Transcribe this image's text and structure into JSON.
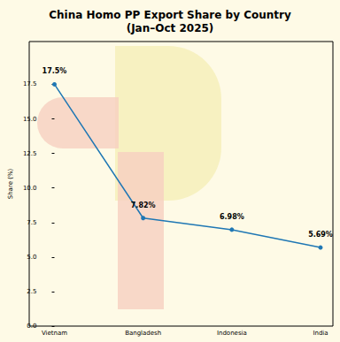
{
  "chart_data": {
    "type": "line",
    "title": "China Homo PP Export Share by Country\n(Jan–Oct 2025)",
    "y_label": "Share (%)",
    "categories": [
      "Vietnam",
      "Bangladesh",
      "Indonesia",
      "India"
    ],
    "values": [
      17.5,
      7.82,
      6.98,
      5.69
    ],
    "value_labels": [
      "17.5%",
      "7.82%",
      "6.98%",
      "5.69%"
    ],
    "color": "#1f77b4",
    "marker": "circle",
    "data_labels": true,
    "grid": false,
    "ylim": [
      0,
      20.6
    ],
    "yticks": [
      {
        "value": 0,
        "label": "0.0"
      },
      2.5,
      {
        "value": 5,
        "label": "5.0"
      },
      7.5,
      {
        "value": 10,
        "label": "10.0"
      },
      12.5,
      {
        "value": 15,
        "label": "15.0"
      },
      17.5
    ]
  }
}
